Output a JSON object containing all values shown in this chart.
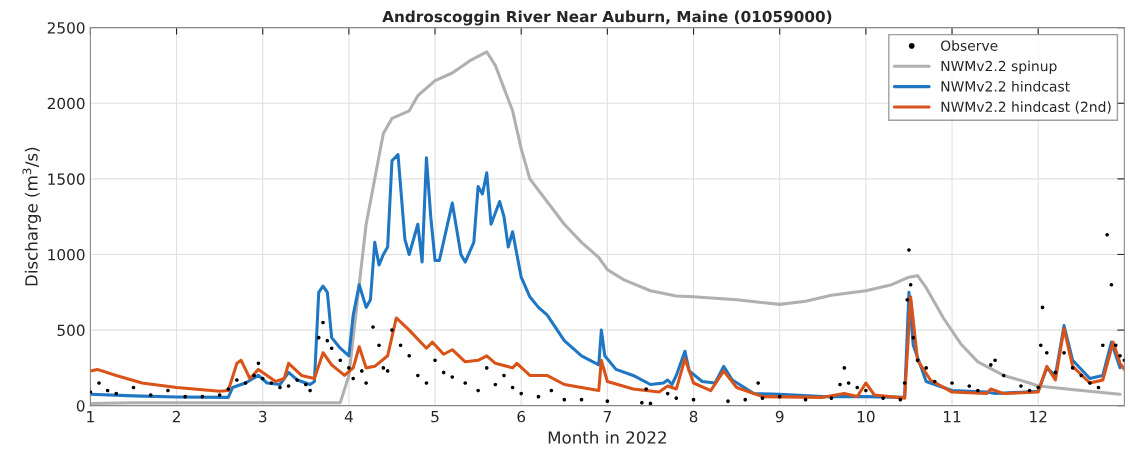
{
  "chart_data": {
    "type": "line",
    "title": "Androscoggin River Near Auburn, Maine (01059000)",
    "xlabel": "Month in 2022",
    "ylabel": "Discharge (m$^{3}$/s)",
    "xlim": [
      1,
      13
    ],
    "xticks": [
      1,
      2,
      3,
      4,
      5,
      6,
      7,
      8,
      9,
      10,
      11,
      12
    ],
    "ylim": [
      0,
      2500
    ],
    "yticks": [
      0,
      500,
      1000,
      1500,
      2000,
      2500
    ],
    "grid": true,
    "legend": "top right",
    "series": [
      {
        "name": "Observe",
        "type": "scatter",
        "marker": "circle",
        "color": "#000000",
        "x": [
          1.0,
          1.1,
          1.2,
          1.3,
          1.5,
          1.7,
          1.9,
          2.1,
          2.3,
          2.5,
          2.6,
          2.7,
          2.8,
          2.9,
          2.95,
          3.0,
          3.1,
          3.2,
          3.3,
          3.4,
          3.5,
          3.55,
          3.65,
          3.7,
          3.75,
          3.8,
          3.9,
          4.0,
          4.05,
          4.15,
          4.2,
          4.28,
          4.35,
          4.4,
          4.45,
          4.5,
          4.6,
          4.7,
          4.8,
          4.9,
          5.0,
          5.1,
          5.2,
          5.35,
          5.5,
          5.6,
          5.7,
          5.8,
          5.9,
          6.0,
          6.2,
          6.35,
          6.5,
          6.7,
          7.0,
          7.4,
          7.45,
          7.5,
          7.7,
          7.8,
          8.0,
          8.4,
          8.6,
          8.75,
          8.8,
          9.0,
          9.3,
          9.6,
          9.7,
          9.75,
          9.8,
          9.9,
          10.0,
          10.2,
          10.4,
          10.45,
          10.48,
          10.5,
          10.52,
          10.55,
          10.6,
          10.7,
          10.8,
          11.0,
          11.2,
          11.3,
          11.45,
          11.5,
          11.6,
          11.8,
          11.9,
          12.0,
          12.03,
          12.05,
          12.1,
          12.2,
          12.3,
          12.4,
          12.5,
          12.6,
          12.7,
          12.75,
          12.8,
          12.85,
          12.9,
          12.95,
          13.0
        ],
        "values": [
          90,
          150,
          100,
          80,
          120,
          70,
          100,
          60,
          60,
          70,
          110,
          170,
          150,
          200,
          280,
          180,
          150,
          120,
          130,
          170,
          140,
          100,
          450,
          550,
          430,
          380,
          300,
          250,
          180,
          230,
          150,
          520,
          400,
          250,
          230,
          500,
          400,
          330,
          200,
          150,
          300,
          220,
          190,
          150,
          100,
          250,
          140,
          200,
          120,
          80,
          60,
          100,
          40,
          40,
          30,
          20,
          110,
          15,
          80,
          50,
          40,
          30,
          40,
          150,
          50,
          60,
          40,
          50,
          140,
          250,
          150,
          120,
          100,
          50,
          40,
          150,
          700,
          1030,
          800,
          450,
          300,
          250,
          160,
          150,
          130,
          100,
          270,
          300,
          200,
          130,
          100,
          120,
          400,
          650,
          350,
          220,
          350,
          250,
          200,
          150,
          120,
          400,
          1130,
          800,
          400,
          330,
          300
        ]
      },
      {
        "name": "NWMv2.2 spinup",
        "color": "#b0b0b0",
        "x": [
          1.0,
          1.5,
          2.0,
          3.0,
          3.9,
          4.0,
          4.1,
          4.2,
          4.3,
          4.4,
          4.5,
          4.7,
          4.8,
          5.0,
          5.2,
          5.4,
          5.6,
          5.7,
          5.8,
          5.9,
          6.0,
          6.1,
          6.3,
          6.5,
          6.7,
          6.9,
          7.0,
          7.2,
          7.5,
          7.8,
          8.0,
          8.5,
          9.0,
          9.3,
          9.6,
          10.0,
          10.3,
          10.5,
          10.6,
          10.7,
          10.9,
          11.1,
          11.3,
          11.6,
          11.9,
          12.0,
          12.5,
          12.95
        ],
        "values": [
          15,
          20,
          20,
          20,
          20,
          200,
          700,
          1200,
          1500,
          1800,
          1900,
          1950,
          2050,
          2150,
          2200,
          2280,
          2340,
          2250,
          2100,
          1950,
          1700,
          1500,
          1350,
          1200,
          1080,
          980,
          900,
          830,
          760,
          725,
          720,
          700,
          670,
          690,
          730,
          760,
          800,
          850,
          860,
          780,
          580,
          410,
          290,
          200,
          150,
          130,
          100,
          75
        ]
      },
      {
        "name": "NWMv2.2 hindcast",
        "color": "#1f77c4",
        "x": [
          1.0,
          1.5,
          2.0,
          2.6,
          2.65,
          2.8,
          2.95,
          3.05,
          3.2,
          3.3,
          3.4,
          3.55,
          3.6,
          3.65,
          3.7,
          3.75,
          3.8,
          3.9,
          4.0,
          4.05,
          4.12,
          4.2,
          4.25,
          4.3,
          4.35,
          4.4,
          4.45,
          4.5,
          4.57,
          4.65,
          4.7,
          4.8,
          4.85,
          4.9,
          4.95,
          5.0,
          5.05,
          5.2,
          5.3,
          5.35,
          5.45,
          5.5,
          5.55,
          5.6,
          5.65,
          5.75,
          5.8,
          5.85,
          5.9,
          5.95,
          6.0,
          6.1,
          6.2,
          6.3,
          6.5,
          6.7,
          6.9,
          6.93,
          6.97,
          7.1,
          7.3,
          7.5,
          7.65,
          7.7,
          7.75,
          7.8,
          7.9,
          7.95,
          8.1,
          8.25,
          8.35,
          8.45,
          8.7,
          9.0,
          9.5,
          10.0,
          10.45,
          10.5,
          10.55,
          10.7,
          11.0,
          11.4,
          11.5,
          12.0,
          12.1,
          12.2,
          12.3,
          12.4,
          12.6,
          12.75,
          12.85,
          12.95
        ],
        "values": [
          75,
          65,
          58,
          55,
          120,
          150,
          200,
          150,
          140,
          220,
          170,
          140,
          160,
          750,
          790,
          750,
          450,
          380,
          330,
          600,
          800,
          650,
          700,
          1080,
          930,
          1000,
          1050,
          1620,
          1660,
          1100,
          1000,
          1200,
          950,
          1640,
          1250,
          960,
          960,
          1340,
          1000,
          950,
          1080,
          1450,
          1400,
          1540,
          1200,
          1350,
          1250,
          1050,
          1150,
          1000,
          850,
          720,
          650,
          600,
          430,
          330,
          270,
          500,
          330,
          240,
          200,
          140,
          150,
          170,
          140,
          200,
          360,
          230,
          160,
          150,
          260,
          170,
          80,
          75,
          60,
          60,
          55,
          750,
          400,
          160,
          100,
          90,
          80,
          95,
          250,
          200,
          530,
          300,
          180,
          200,
          420,
          250
        ]
      },
      {
        "name": "NWMv2.2 hindcast (2nd)",
        "color": "#d95319",
        "x": [
          1.0,
          1.08,
          1.3,
          1.6,
          2.0,
          2.5,
          2.6,
          2.7,
          2.75,
          2.85,
          2.95,
          3.05,
          3.15,
          3.25,
          3.3,
          3.45,
          3.6,
          3.7,
          3.8,
          3.95,
          4.05,
          4.12,
          4.2,
          4.3,
          4.45,
          4.55,
          4.7,
          4.9,
          4.97,
          5.1,
          5.2,
          5.35,
          5.5,
          5.6,
          5.7,
          5.9,
          5.95,
          6.1,
          6.3,
          6.5,
          6.9,
          6.93,
          7.0,
          7.3,
          7.6,
          7.7,
          7.8,
          7.9,
          8.0,
          8.2,
          8.35,
          8.5,
          8.8,
          9.5,
          9.75,
          9.9,
          10.0,
          10.1,
          10.45,
          10.52,
          10.6,
          10.75,
          11.0,
          11.4,
          11.45,
          11.6,
          12.0,
          12.1,
          12.2,
          12.3,
          12.4,
          12.6,
          12.75,
          12.87,
          12.95,
          13.0
        ],
        "values": [
          230,
          240,
          200,
          150,
          120,
          95,
          100,
          280,
          300,
          180,
          240,
          200,
          160,
          180,
          280,
          200,
          180,
          350,
          270,
          200,
          250,
          390,
          250,
          260,
          330,
          580,
          500,
          380,
          420,
          340,
          370,
          290,
          300,
          330,
          280,
          250,
          280,
          200,
          200,
          140,
          100,
          300,
          160,
          110,
          90,
          130,
          110,
          310,
          150,
          100,
          230,
          120,
          60,
          55,
          80,
          60,
          150,
          70,
          50,
          720,
          300,
          170,
          90,
          80,
          110,
          80,
          90,
          260,
          170,
          510,
          260,
          150,
          170,
          420,
          280,
          240
        ]
      }
    ]
  }
}
